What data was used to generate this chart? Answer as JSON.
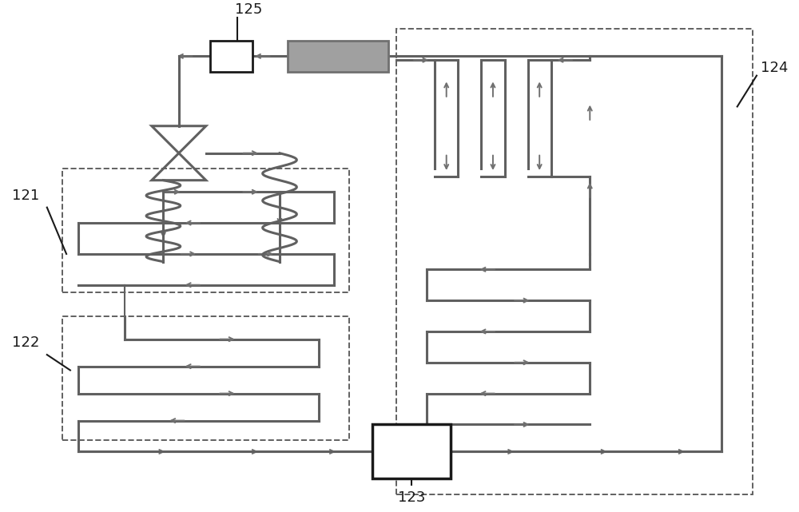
{
  "bg_color": "#ffffff",
  "line_color": "#606060",
  "arrow_color": "#707070",
  "dark_gray": "#909090",
  "black": "#1a1a1a",
  "lw_main": 2.2,
  "lw_thin": 1.5,
  "lw_dash": 1.4,
  "arrow_ms": 9,
  "label_fontsize": 13
}
